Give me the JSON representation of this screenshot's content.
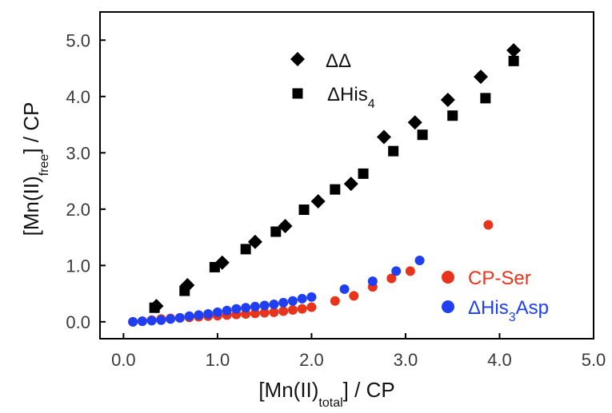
{
  "chart_data": {
    "type": "scatter",
    "xlabel": {
      "prefix": "[Mn(II)",
      "sub": "total",
      "suffix": "]  / CP"
    },
    "ylabel": {
      "prefix": "[Mn(II)",
      "sub": "free",
      "suffix": "] / CP"
    },
    "xlim": [
      -0.25,
      5.0
    ],
    "ylim": [
      -0.3,
      5.5
    ],
    "x_ticks": [
      "0.0",
      "1.0",
      "2.0",
      "3.0",
      "4.0",
      "5.0"
    ],
    "y_ticks": [
      "0.0",
      "1.0",
      "2.0",
      "3.0",
      "4.0",
      "5.0"
    ],
    "grid": false,
    "series": [
      {
        "name": "ΔΔ",
        "name_main": "ΔΔ",
        "name_sub": "",
        "name_tail": "",
        "marker": "diamond",
        "color": "#000000",
        "legend_loc": "top-center",
        "x": [
          0.35,
          0.68,
          1.05,
          1.4,
          1.72,
          2.07,
          2.42,
          2.77,
          3.1,
          3.45,
          3.8,
          4.15
        ],
        "y": [
          0.28,
          0.65,
          1.05,
          1.42,
          1.7,
          2.14,
          2.45,
          3.28,
          3.54,
          3.94,
          4.35,
          4.82
        ]
      },
      {
        "name": "ΔHis4",
        "name_main": "ΔHis",
        "name_sub": "4",
        "name_tail": "",
        "marker": "square",
        "color": "#000000",
        "legend_loc": "top-center",
        "x": [
          0.33,
          0.65,
          0.97,
          1.3,
          1.62,
          1.92,
          2.25,
          2.55,
          2.87,
          3.18,
          3.5,
          3.85,
          4.15
        ],
        "y": [
          0.25,
          0.55,
          0.97,
          1.29,
          1.6,
          1.99,
          2.35,
          2.63,
          3.03,
          3.32,
          3.66,
          3.97,
          4.63
        ]
      },
      {
        "name": "CP-Ser",
        "name_main": "CP-Ser",
        "name_sub": "",
        "name_tail": "",
        "marker": "circle",
        "color": "#e8341c",
        "legend_loc": "bottom-right",
        "x": [
          0.1,
          0.2,
          0.3,
          0.4,
          0.5,
          0.6,
          0.7,
          0.8,
          0.9,
          1.0,
          1.1,
          1.2,
          1.3,
          1.4,
          1.5,
          1.6,
          1.7,
          1.8,
          1.9,
          2.0,
          2.25,
          2.45,
          2.65,
          2.85,
          3.05,
          3.88
        ],
        "y": [
          0.0,
          0.01,
          0.03,
          0.05,
          0.06,
          0.07,
          0.08,
          0.09,
          0.1,
          0.11,
          0.12,
          0.13,
          0.14,
          0.15,
          0.16,
          0.17,
          0.19,
          0.21,
          0.23,
          0.26,
          0.37,
          0.46,
          0.62,
          0.77,
          0.9,
          1.72
        ]
      },
      {
        "name": "ΔHis3Asp",
        "name_main": "ΔHis",
        "name_sub": "3",
        "name_tail": "Asp",
        "marker": "circle",
        "color": "#1f3ff0",
        "legend_loc": "bottom-right",
        "x": [
          0.1,
          0.2,
          0.3,
          0.4,
          0.5,
          0.6,
          0.7,
          0.8,
          0.9,
          1.0,
          1.1,
          1.2,
          1.3,
          1.4,
          1.5,
          1.6,
          1.7,
          1.8,
          1.9,
          2.0,
          2.35,
          2.65,
          2.9,
          3.15
        ],
        "y": [
          0.0,
          0.01,
          0.02,
          0.03,
          0.05,
          0.07,
          0.1,
          0.12,
          0.14,
          0.17,
          0.2,
          0.23,
          0.25,
          0.27,
          0.29,
          0.31,
          0.34,
          0.37,
          0.41,
          0.44,
          0.58,
          0.72,
          0.9,
          1.09
        ]
      }
    ]
  }
}
